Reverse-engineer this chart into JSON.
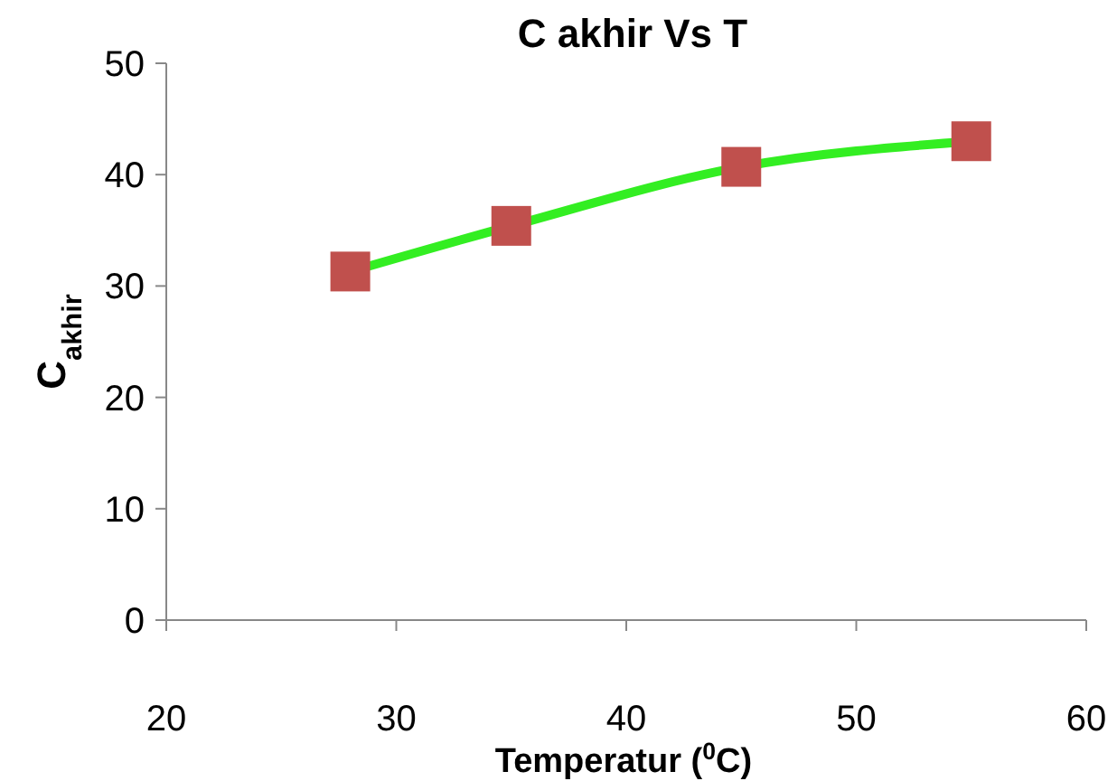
{
  "chart_data": {
    "type": "line",
    "title": "C akhir Vs T",
    "xlabel": "Temperatur ($^{0}$C)",
    "ylabel": "C$_{akhir}$",
    "x": [
      28,
      35,
      45,
      55
    ],
    "series": [
      {
        "color": "#33ee22",
        "colors": [
          "#c0504d",
          "#c0504d",
          "#c0504d",
          "#c0504d"
        ],
        "values": [
          31.3,
          35.4,
          40.7,
          43.0
        ]
      }
    ],
    "xlim": [
      20,
      60
    ],
    "xticks": [
      20,
      30,
      40,
      50,
      60
    ],
    "ylim": [
      0,
      50
    ],
    "yticks": [
      0,
      10,
      20,
      30,
      40,
      50
    ],
    "grid": false,
    "marker": "square",
    "line_style": "solid"
  }
}
